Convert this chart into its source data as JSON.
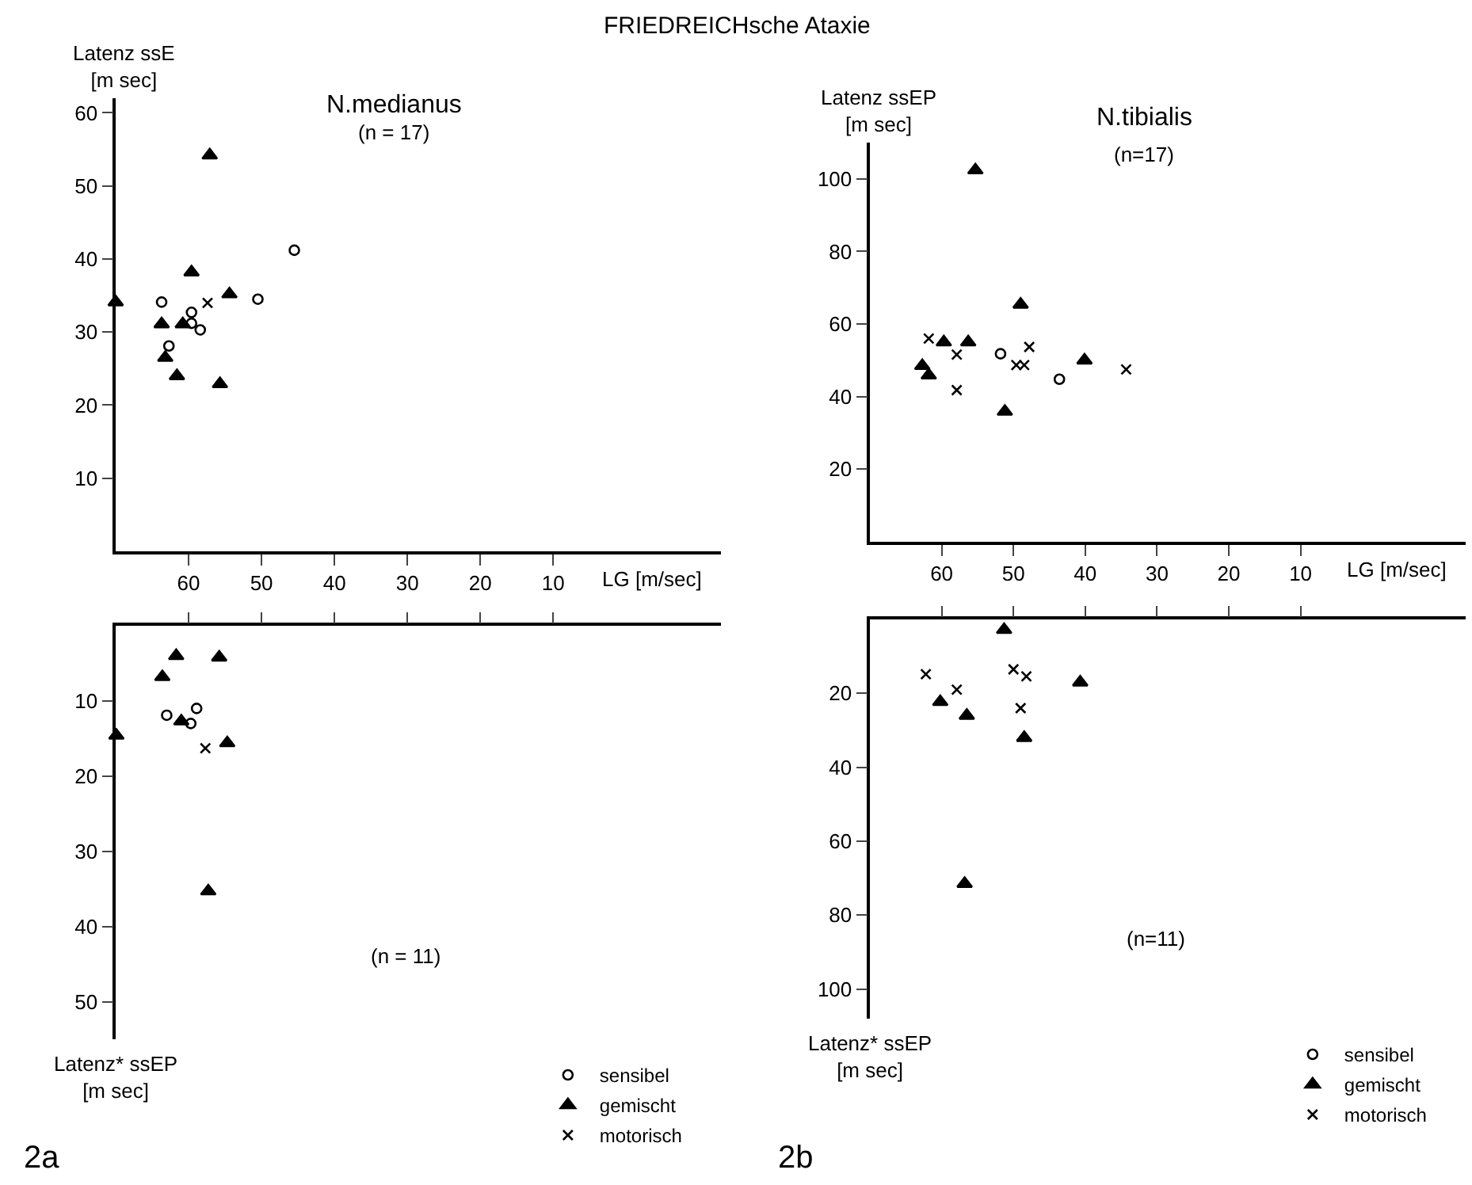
{
  "chart_data": [
    {
      "type": "scatter",
      "title": "FRIEDREICHsche Ataxie",
      "subtitle": "N.medianus",
      "xlabel": "LG [m/sec]",
      "ylabel": "Latenz ssE\n[m sec]",
      "annotations": [
        "(n = 17)"
      ],
      "xlim": [
        70,
        -13
      ],
      "xticks": [
        60,
        50,
        40,
        30,
        20,
        10
      ],
      "ylim": [
        0,
        62
      ],
      "yticks": [
        10,
        20,
        30,
        40,
        50,
        60
      ],
      "legend": false,
      "series": [
        {
          "color": "#000000",
          "marker": "circle",
          "x": [
            63.7,
            62.7,
            59.6,
            59.6,
            58.4,
            50.5,
            45.5
          ],
          "values": [
            34.1,
            28.1,
            32.7,
            31.2,
            30.3,
            34.5,
            41.2
          ]
        },
        {
          "color": "#000000",
          "marker": "triangle",
          "x": [
            70,
            63.7,
            63.2,
            61.6,
            60.8,
            59.6,
            57.1,
            55.7,
            54.4
          ],
          "values": [
            34.1,
            31.1,
            26.5,
            24.0,
            31.1,
            38.2,
            54.2,
            22.9,
            35.2
          ]
        },
        {
          "color": "#000000",
          "marker": "cross",
          "x": [
            57.4
          ],
          "values": [
            34.0
          ]
        }
      ]
    },
    {
      "type": "scatter",
      "ylabel": "Latenz* ssEP\n[m sec]",
      "annotations": [
        "(n = 11)",
        "2a"
      ],
      "xlim": [
        70,
        -13
      ],
      "xticks": [
        60,
        50,
        40,
        30,
        20,
        10
      ],
      "ylim": [
        55,
        0
      ],
      "yticks": [
        10,
        20,
        30,
        40,
        50
      ],
      "legend": "bottom right",
      "tick_labels": "y",
      "series": [
        {
          "name": "sensibel",
          "color": "#000000",
          "marker": "circle",
          "x": [
            63.0,
            58.9,
            59.7
          ],
          "values": [
            11.9,
            11.0,
            13.0
          ]
        },
        {
          "name": "gemischt",
          "color": "#000000",
          "marker": "triangle",
          "x": [
            69.9,
            63.6,
            61.7,
            55.8,
            61.0,
            54.7,
            57.3
          ],
          "values": [
            14.6,
            6.8,
            4.0,
            4.2,
            12.7,
            15.6,
            35.3
          ]
        },
        {
          "name": "motorisch",
          "color": "#000000",
          "marker": "cross",
          "x": [
            57.7
          ],
          "values": [
            16.3
          ]
        }
      ]
    },
    {
      "type": "scatter",
      "subtitle": "N.tibialis",
      "xlabel": "LG [m/sec]",
      "ylabel": "Latenz ssEP\n[m sec]",
      "annotations": [
        "(n=17)"
      ],
      "xlim": [
        70,
        -13
      ],
      "xticks": [
        60,
        50,
        40,
        30,
        20,
        10
      ],
      "ylim": [
        0,
        110
      ],
      "yticks": [
        20,
        40,
        60,
        80,
        100
      ],
      "legend": false,
      "series": [
        {
          "color": "#000000",
          "marker": "circle",
          "x": [
            51.8,
            43.6
          ],
          "values": [
            51.8,
            44.8
          ]
        },
        {
          "color": "#000000",
          "marker": "triangle",
          "x": [
            62.7,
            61.8,
            59.7,
            56.3,
            55.3,
            49.0,
            51.2,
            40.1
          ],
          "values": [
            48.5,
            45.9,
            55.0,
            55.0,
            102.4,
            65.4,
            35.9,
            50.0
          ]
        },
        {
          "color": "#000000",
          "marker": "cross",
          "x": [
            61.8,
            57.9,
            57.9,
            49.6,
            48.5,
            47.8,
            34.3
          ],
          "values": [
            56.0,
            51.6,
            41.8,
            48.7,
            48.7,
            53.7,
            47.5
          ]
        }
      ]
    },
    {
      "type": "scatter",
      "ylabel": "Latenz* ssEP\n[m sec]",
      "annotations": [
        "(n=11)",
        "2b"
      ],
      "xlim": [
        70,
        -13
      ],
      "xticks": [
        60,
        50,
        40,
        30,
        20,
        10
      ],
      "ylim": [
        108,
        0
      ],
      "yticks": [
        20,
        40,
        60,
        80,
        100
      ],
      "legend": "bottom right",
      "tick_labels": "y",
      "series": [
        {
          "name": "sensibel",
          "color": "#000000",
          "marker": "circle"
        },
        {
          "name": "gemischt",
          "color": "#000000",
          "marker": "triangle",
          "x": [
            51.3,
            60.2,
            56.5,
            48.5,
            40.7,
            56.8
          ],
          "values": [
            2.8,
            22.3,
            26.0,
            32.0,
            17.0,
            71.5
          ]
        },
        {
          "name": "motorisch",
          "color": "#000000",
          "marker": "cross",
          "x": [
            62.2,
            57.9,
            50.0,
            48.2,
            49.0
          ],
          "values": [
            14.8,
            19.0,
            13.5,
            15.4,
            24.0
          ]
        }
      ]
    }
  ]
}
